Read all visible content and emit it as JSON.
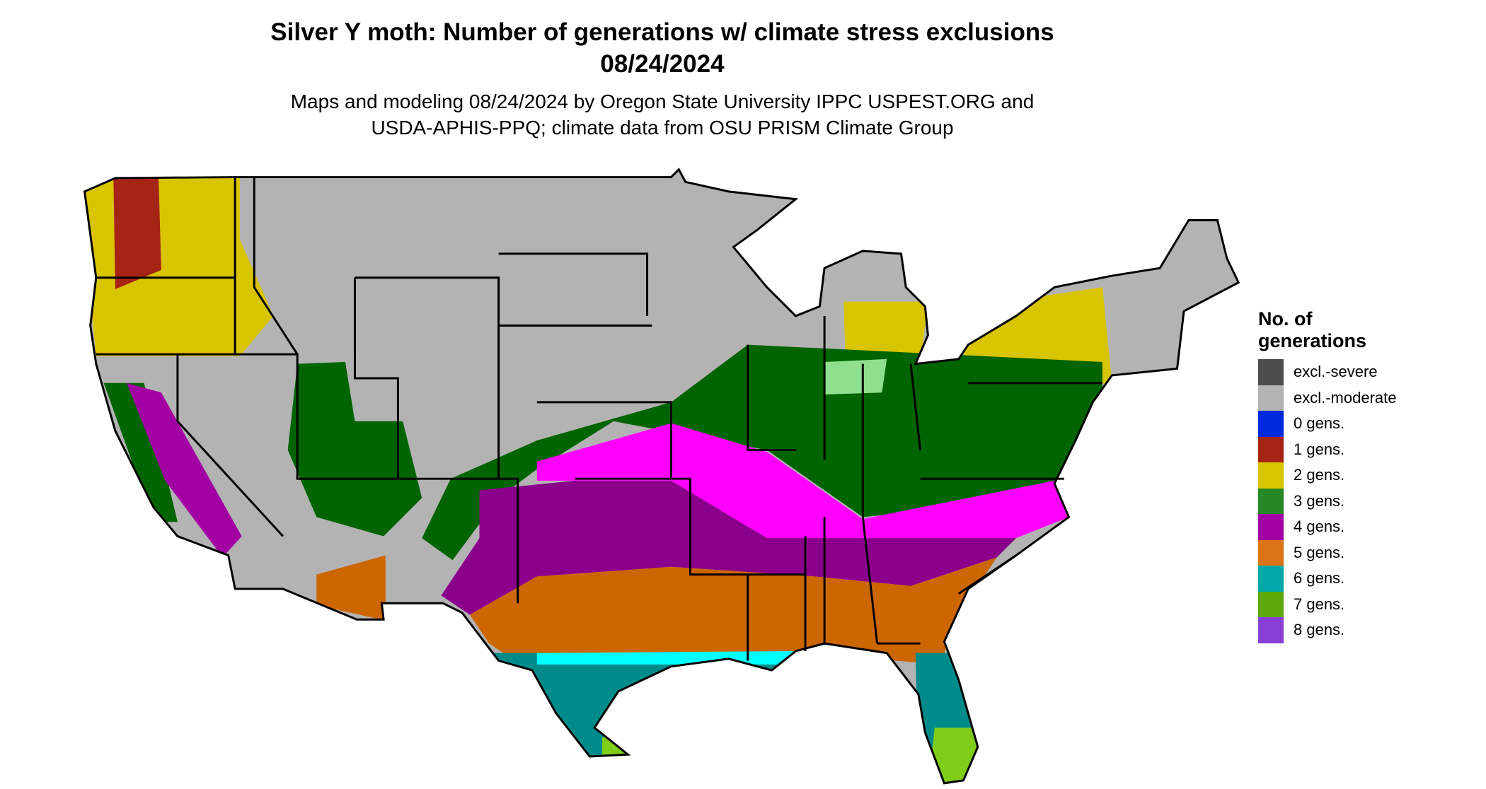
{
  "header": {
    "title": "Silver Y moth: Number of generations w/ climate stress exclusions",
    "date": "08/24/2024",
    "subtitle_line1": "Maps and modeling 08/24/2024 by Oregon State University IPPC USPEST.ORG and",
    "subtitle_line2": "USDA-APHIS-PPQ; climate data from OSU PRISM Climate Group"
  },
  "legend": {
    "title_line1": "No. of",
    "title_line2": "generations",
    "items": [
      {
        "label": "excl.-severe",
        "color": "#4d4d4d"
      },
      {
        "label": "excl.-moderate",
        "color": "#b3b3b3"
      },
      {
        "label": "0 gens.",
        "color": "#0029dd"
      },
      {
        "label": "1 gens.",
        "color": "#a62414"
      },
      {
        "label": "2 gens.",
        "color": "#d9c400"
      },
      {
        "label": "3 gens.",
        "color": "#268726"
      },
      {
        "label": "4 gens.",
        "color": "#a300a3"
      },
      {
        "label": "5 gens.",
        "color": "#dc7314"
      },
      {
        "label": "6 gens.",
        "color": "#00a8a8"
      },
      {
        "label": "7 gens.",
        "color": "#5ea80a"
      },
      {
        "label": "8 gens.",
        "color": "#873fd6"
      }
    ]
  }
}
